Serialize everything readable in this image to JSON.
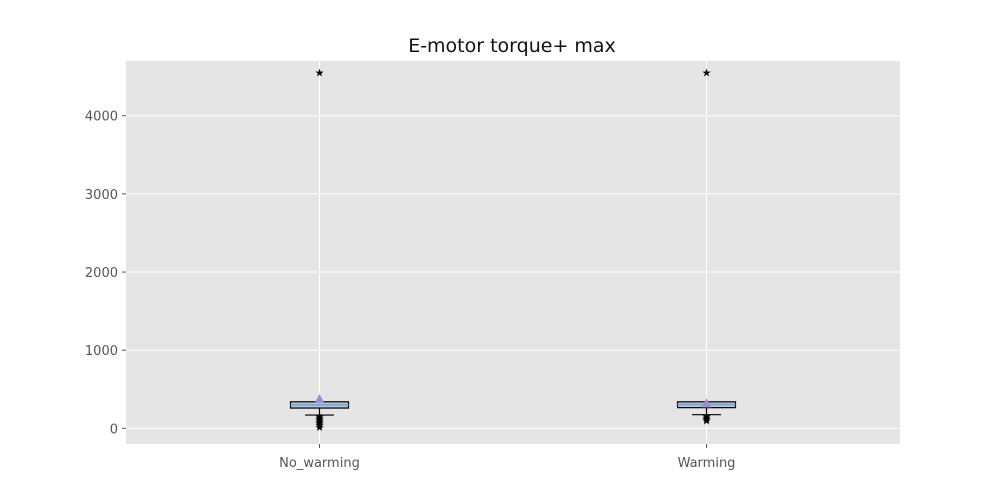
{
  "chart_data": {
    "type": "box",
    "title": "E-motor torque+ max",
    "xlabel": "",
    "ylabel": "",
    "categories": [
      "No_warming",
      "Warming"
    ],
    "ylim": [
      -200,
      4700
    ],
    "yticks": [
      0,
      1000,
      2000,
      3000,
      4000
    ],
    "grid": true,
    "legend": "none",
    "boxes": [
      {
        "category": "No_warming",
        "whisker_low": 170,
        "q1": 260,
        "median": 300,
        "q3": 340,
        "whisker_high": 340,
        "mean": 375,
        "outliers": [
          4550,
          160,
          140,
          120,
          100,
          80,
          60,
          40,
          20
        ]
      },
      {
        "category": "Warming",
        "whisker_low": 175,
        "q1": 265,
        "median": 305,
        "q3": 340,
        "whisker_high": 340,
        "mean": 320,
        "outliers": [
          4550,
          160,
          140,
          120,
          100
        ]
      }
    ],
    "colors": {
      "plot_bg": "#e5e5e5",
      "grid": "#ffffff",
      "box_face": "#b0c4de",
      "box_edge": "#000000",
      "median": "#7aa6c2",
      "mean": "#9a8fd0",
      "outlier": "#000000"
    }
  }
}
